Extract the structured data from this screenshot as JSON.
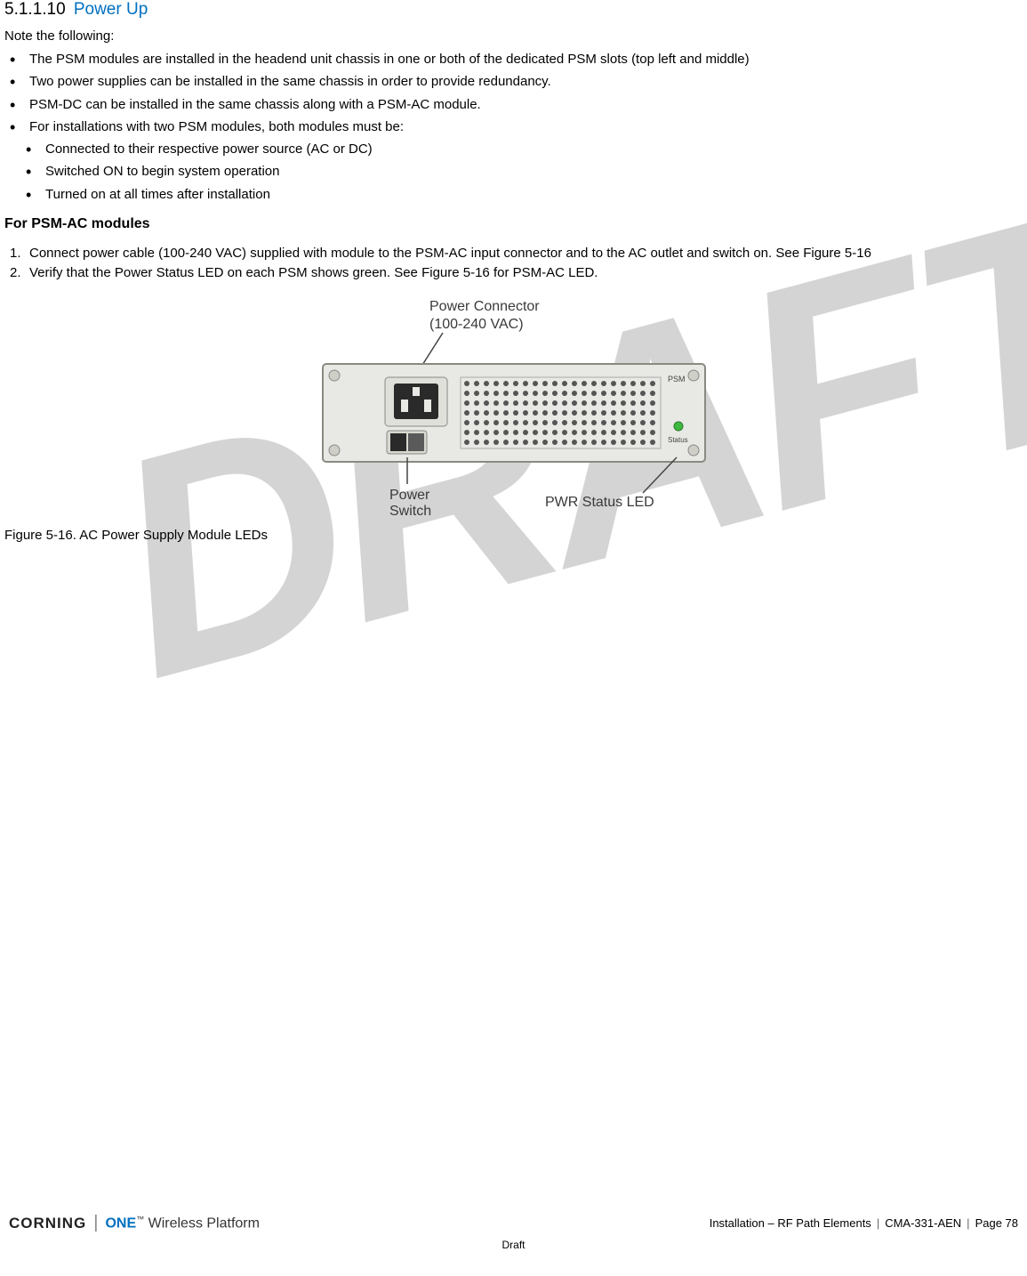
{
  "watermark": "DRAFT",
  "section": {
    "number": "5.1.1.10",
    "title": "Power Up"
  },
  "note_intro": "Note the following:",
  "bullets": [
    "The PSM modules are installed in the headend unit chassis in one or both of the dedicated PSM slots (top left and middle)",
    "Two power supplies can be installed in the same chassis in order to provide redundancy.",
    "PSM-DC can be installed in the same chassis along with a PSM-AC module.",
    "For installations with two PSM modules, both modules must be:"
  ],
  "nested_bullets": [
    "Connected to their respective power source (AC or DC)",
    "Switched ON to begin system operation",
    "Turned on at all times after installation"
  ],
  "subheading": "For PSM-AC modules",
  "numbered": [
    "Connect power cable (100-240 VAC) supplied with module to the PSM-AC input connector and to the AC outlet and switch on. See Figure 5-16",
    "Verify that the Power Status LED on each PSM shows green. See Figure 5-16 for PSM-AC LED."
  ],
  "figure": {
    "labels": {
      "connector": "Power Connector\n(100-240 VAC)",
      "switch": "Power\nSwitch",
      "led": "PWR Status LED"
    },
    "colors": {
      "module_bg": "#e8e8e4",
      "module_border": "#8a8a82",
      "connector_black": "#2a2a2a",
      "text": "#3a3a3a",
      "vent_dark": "#555555",
      "led_green": "#3fb83f"
    },
    "caption": "Figure 5-16. AC Power Supply Module LEDs"
  },
  "footer": {
    "brand1": "CORNING",
    "brand2_one": "ONE",
    "brand2_rest": " Wireless Platform",
    "right_parts": {
      "section": "Installation – RF Path Elements",
      "docnum": "CMA-331-AEN",
      "page": "Page 78"
    },
    "draft": "Draft"
  }
}
